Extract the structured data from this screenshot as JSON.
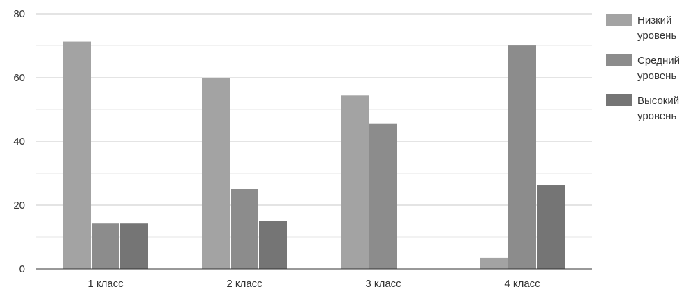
{
  "chart_data": {
    "type": "bar",
    "categories": [
      "1 класс",
      "2 класс",
      "3 класс",
      "4 класс"
    ],
    "series": [
      {
        "name": "Низкий уровень",
        "values": [
          71.4,
          60,
          54.5,
          3.5
        ],
        "color": "#a3a3a3"
      },
      {
        "name": "Средний уровень",
        "values": [
          14.3,
          25,
          45.5,
          70.2
        ],
        "color": "#8c8c8c"
      },
      {
        "name": "Высокий уровень",
        "values": [
          14.3,
          15,
          0,
          26.3
        ],
        "color": "#757575"
      }
    ],
    "legend_lines": [
      [
        "Низкий",
        "уровень"
      ],
      [
        "Средний",
        "уровень"
      ],
      [
        "Высокий",
        "уровень"
      ]
    ],
    "yticks": [
      "0",
      "20",
      "40",
      "60",
      "80"
    ],
    "ylim": [
      0,
      80
    ],
    "grid": true,
    "legend_position": "right",
    "title": "",
    "xlabel": "",
    "ylabel": ""
  }
}
